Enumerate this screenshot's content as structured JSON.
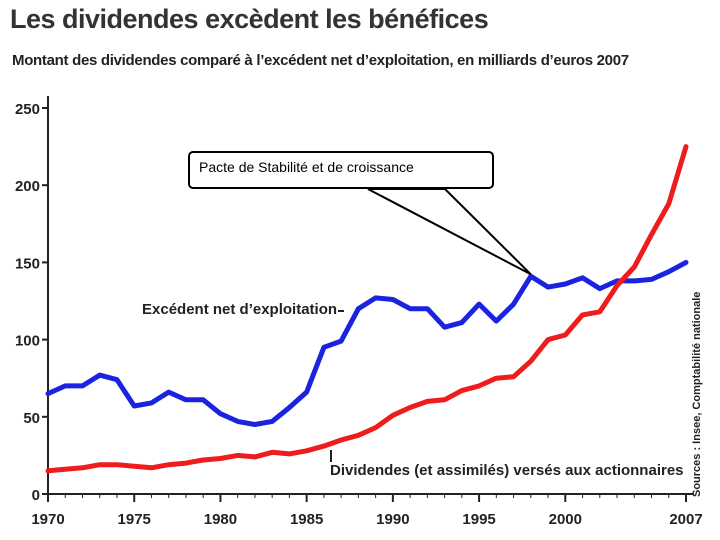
{
  "title": "Les dividendes excèdent les bénéfices",
  "subtitle": "Montant des dividendes comparé à l’excédent net d’exploitation, en milliards d’euros 2007",
  "callout": "Pacte de Stabilité et de croissance",
  "source": "Sources : Insee, Comptabilité nationale",
  "colors": {
    "excedent": "#1a23e0",
    "dividendes": "#ee1c1c"
  },
  "chart_data": {
    "type": "line",
    "title": "Les dividendes excèdent les bénéfices",
    "xlabel": "",
    "ylabel": "en milliards d’euros 2007",
    "xlim": [
      1970,
      2007
    ],
    "ylim": [
      0,
      250
    ],
    "x_ticks": [
      "1970",
      "1975",
      "1980",
      "1985",
      "1990",
      "1995",
      "2000",
      "2007"
    ],
    "x_tick_values": [
      1970,
      1975,
      1980,
      1985,
      1990,
      1995,
      2000,
      2007
    ],
    "y_ticks": [
      "0",
      "50",
      "100",
      "150",
      "200",
      "250"
    ],
    "y_tick_values": [
      0,
      50,
      100,
      150,
      200,
      250
    ],
    "series": [
      {
        "name": "Excédent net d’exploitation",
        "x": [
          1970,
          1971,
          1972,
          1973,
          1974,
          1975,
          1976,
          1977,
          1978,
          1979,
          1980,
          1981,
          1982,
          1983,
          1984,
          1985,
          1986,
          1987,
          1988,
          1989,
          1990,
          1991,
          1992,
          1993,
          1994,
          1995,
          1996,
          1997,
          1998,
          1999,
          2000,
          2001,
          2002,
          2003,
          2004,
          2005,
          2006,
          2007
        ],
        "values": [
          65,
          70,
          70,
          77,
          74,
          57,
          59,
          66,
          61,
          61,
          52,
          47,
          45,
          47,
          56,
          66,
          95,
          99,
          120,
          127,
          126,
          120,
          120,
          108,
          111,
          123,
          112,
          123,
          141,
          134,
          136,
          140,
          133,
          138,
          138,
          139,
          144,
          150
        ]
      },
      {
        "name": "Dividendes (et assimilés) versés aux actionnaires",
        "x": [
          1970,
          1971,
          1972,
          1973,
          1974,
          1975,
          1976,
          1977,
          1978,
          1979,
          1980,
          1981,
          1982,
          1983,
          1984,
          1985,
          1986,
          1987,
          1988,
          1989,
          1990,
          1991,
          1992,
          1993,
          1994,
          1995,
          1996,
          1997,
          1998,
          1999,
          2000,
          2001,
          2002,
          2003,
          2004,
          2005,
          2006,
          2007
        ],
        "values": [
          15,
          16,
          17,
          19,
          19,
          18,
          17,
          19,
          20,
          22,
          23,
          25,
          24,
          27,
          26,
          28,
          31,
          35,
          38,
          43,
          51,
          56,
          60,
          61,
          67,
          70,
          75,
          76,
          86,
          100,
          103,
          116,
          118,
          135,
          147,
          168,
          188,
          225
        ]
      }
    ]
  }
}
